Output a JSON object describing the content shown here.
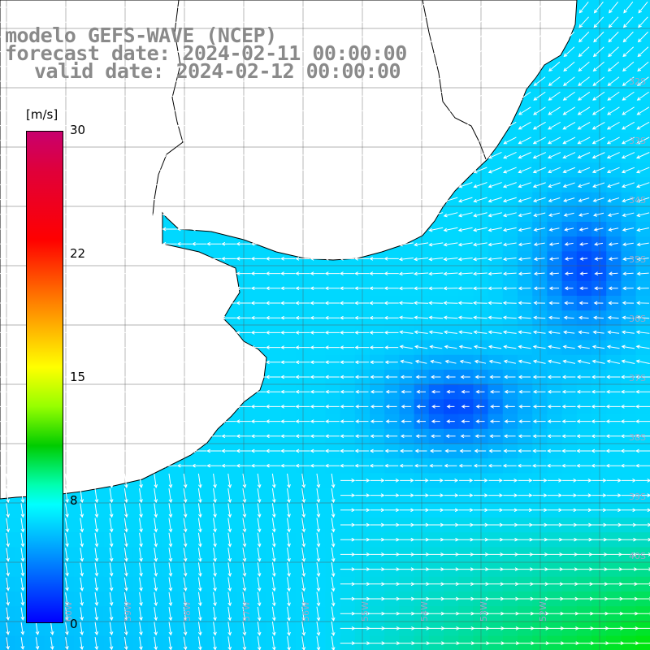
{
  "header": {
    "model_line": "modelo GEFS-WAVE (NCEP)",
    "forecast_line": "forecast date: 2024-02-11 00:00:00",
    "valid_line": "valid date: 2024-02-12 00:00:00"
  },
  "colorbar": {
    "unit": "[m/s]",
    "ticks": [
      "30",
      "22",
      "15",
      "8",
      "0"
    ],
    "tick_values": [
      30,
      22,
      15,
      8,
      0
    ],
    "range": [
      0,
      30
    ],
    "colors": [
      "#0000ff",
      "#0096ff",
      "#00ffff",
      "#00ffb0",
      "#00cc00",
      "#96ff00",
      "#ffff00",
      "#ff8c00",
      "#ff0000",
      "#e0003a",
      "#c8006e"
    ]
  },
  "map": {
    "lat_labels": [
      "32S",
      "33S",
      "34S",
      "35S",
      "36S",
      "37S",
      "38S",
      "39S",
      "40S"
    ],
    "lon_labels": [
      "60W",
      "59W",
      "58W",
      "57W",
      "56W",
      "55W",
      "54W",
      "53W",
      "52W"
    ],
    "field": "wind speed with direction arrows",
    "colors": {
      "low": "#0000ff",
      "mid": "#00d8ff",
      "high": "#00e600",
      "land": "#ffffff",
      "grid": "#555555",
      "coast": "#000000",
      "arrow": "#ffffff"
    }
  }
}
